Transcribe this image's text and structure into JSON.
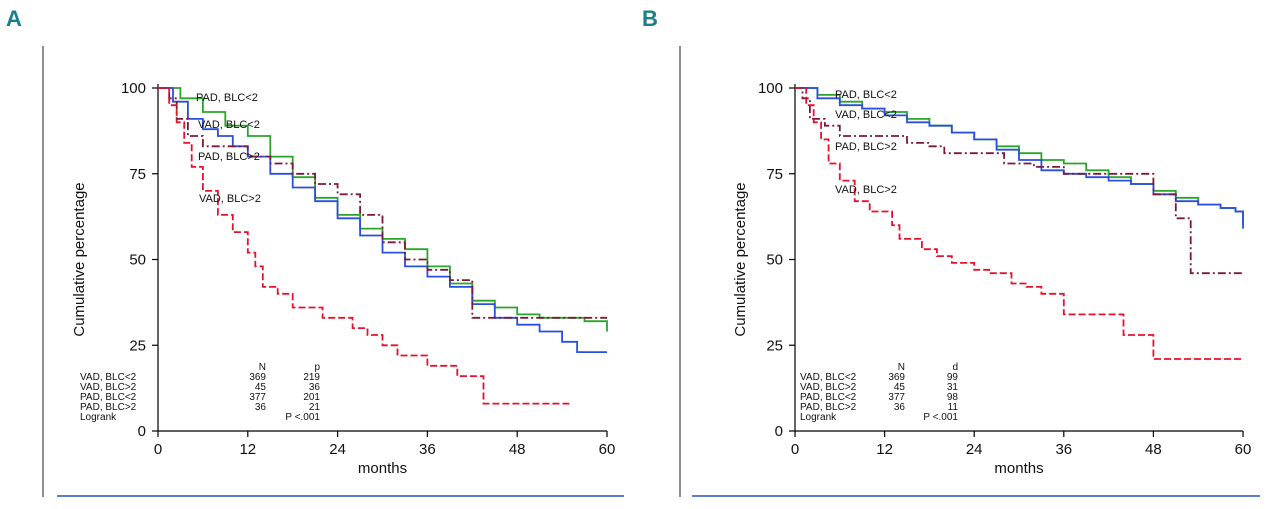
{
  "chart_data": [
    {
      "panel": "A",
      "type": "line",
      "ylabel": "Cumulative percentage",
      "xlabel": "months",
      "xticks": [
        0,
        12,
        24,
        36,
        48,
        60
      ],
      "yticks": [
        0,
        25,
        50,
        75,
        100
      ],
      "xlim": [
        0,
        60
      ],
      "ylim": [
        0,
        100
      ],
      "series": [
        {
          "name": "PAD, BLC<2",
          "color": "#2aa52a",
          "dash": "solid",
          "x": [
            0,
            3,
            6,
            9,
            12,
            15,
            18,
            21,
            24,
            27,
            30,
            33,
            36,
            39,
            42,
            45,
            48,
            51,
            54,
            57,
            59.5,
            60
          ],
          "y": [
            100,
            97,
            93,
            89,
            86,
            80,
            74,
            68,
            63,
            59,
            56,
            53,
            48,
            43,
            38,
            36,
            34,
            33,
            33,
            32,
            32,
            29
          ]
        },
        {
          "name": "VAD, BLC<2",
          "color": "#2a4fe0",
          "dash": "solid",
          "x": [
            0,
            2,
            4,
            6,
            8,
            10,
            12,
            15,
            18,
            21,
            24,
            27,
            30,
            33,
            36,
            39,
            42,
            45,
            48,
            51,
            54,
            56,
            60
          ],
          "y": [
            100,
            96,
            91,
            88,
            86,
            83,
            80,
            75,
            71,
            67,
            62,
            57,
            52,
            48,
            45,
            42,
            37,
            33,
            31,
            29,
            26,
            23,
            23
          ]
        },
        {
          "name": "PAD, BLC>2",
          "color": "#7a1a3a",
          "dash": "dashdot",
          "x": [
            0,
            1.5,
            2.5,
            4,
            6,
            9,
            12,
            15,
            18,
            21,
            24,
            27,
            30,
            33,
            36,
            39,
            42,
            60
          ],
          "y": [
            100,
            97,
            91,
            86,
            83,
            83,
            80,
            78,
            75,
            72,
            69,
            63,
            55,
            50,
            47,
            44,
            33,
            33
          ]
        },
        {
          "name": "VAD, BLC>2",
          "color": "#e8102a",
          "dash": "dashed",
          "x": [
            0,
            1.5,
            2.5,
            3.5,
            4.5,
            6,
            8,
            10,
            12,
            13,
            14,
            16,
            18,
            22,
            26,
            28,
            30,
            32,
            36,
            40,
            43,
            43.5,
            55
          ],
          "y": [
            100,
            95,
            90,
            84,
            77,
            70,
            63,
            58,
            52,
            48,
            42,
            40,
            36,
            33,
            30,
            28,
            25,
            22,
            19,
            16,
            16,
            8,
            8
          ]
        }
      ],
      "annotations": [
        "PAD, BLC<2",
        "VAD, BLC<2",
        "PAD, BLC>2",
        "VAD, BLC>2"
      ],
      "table": {
        "headers": [
          "",
          "N",
          "p"
        ],
        "rows": [
          [
            "VAD, BLC<2",
            "369",
            "219"
          ],
          [
            "VAD, BLC>2",
            "45",
            "36"
          ],
          [
            "PAD, BLC<2",
            "377",
            "201"
          ],
          [
            "PAD, BLC>2",
            "36",
            "21"
          ]
        ],
        "footer": [
          "Logrank",
          "P <.001"
        ]
      }
    },
    {
      "panel": "B",
      "type": "line",
      "ylabel": "Cumulative percentage",
      "xlabel": "months",
      "xticks": [
        0,
        12,
        24,
        36,
        48,
        60
      ],
      "yticks": [
        0,
        25,
        50,
        75,
        100
      ],
      "xlim": [
        0,
        60
      ],
      "ylim": [
        0,
        100
      ],
      "series": [
        {
          "name": "PAD, BLC<2",
          "color": "#2aa52a",
          "dash": "solid",
          "x": [
            0,
            3,
            6,
            9,
            12,
            15,
            18,
            21,
            24,
            27,
            30,
            33,
            36,
            39,
            42,
            45,
            48,
            51,
            54,
            57,
            59,
            60
          ],
          "y": [
            100,
            98,
            96,
            94,
            93,
            91,
            89,
            87,
            85,
            83,
            81,
            79,
            78,
            76,
            74,
            72,
            70,
            68,
            66,
            65,
            64,
            60
          ]
        },
        {
          "name": "VAD, BLC<2",
          "color": "#2a4fe0",
          "dash": "solid",
          "x": [
            0,
            3,
            6,
            9,
            12,
            15,
            18,
            21,
            24,
            27,
            30,
            33,
            36,
            39,
            42,
            45,
            48,
            51,
            54,
            57,
            59,
            60
          ],
          "y": [
            100,
            97,
            95,
            94,
            92,
            90,
            89,
            87,
            85,
            82,
            79,
            76,
            75,
            74,
            73,
            72,
            69,
            67,
            66,
            65,
            64,
            59
          ]
        },
        {
          "name": "PAD, BLC>2",
          "color": "#7a1a3a",
          "dash": "dashdot",
          "x": [
            0,
            1,
            2,
            4,
            6,
            12,
            15,
            18,
            20,
            24,
            28,
            32,
            36,
            42,
            47,
            48,
            51,
            53,
            60
          ],
          "y": [
            100,
            97,
            91,
            89,
            86,
            86,
            84,
            83,
            81,
            81,
            78,
            77,
            75,
            75,
            75,
            69,
            62,
            46,
            46
          ]
        },
        {
          "name": "VAD, BLC>2",
          "color": "#e8102a",
          "dash": "dashed",
          "x": [
            0,
            1.5,
            2.5,
            3.5,
            4.5,
            6,
            8,
            10,
            13,
            14,
            17,
            19,
            21,
            24,
            26,
            29,
            31,
            33,
            36,
            40,
            44,
            48,
            51,
            56,
            60
          ],
          "y": [
            100,
            95,
            90,
            85,
            78,
            73,
            67,
            64,
            60,
            56,
            53,
            51,
            49,
            47,
            46,
            43,
            42,
            40,
            34,
            34,
            28,
            21,
            21,
            21,
            21
          ]
        }
      ],
      "annotations": [
        "PAD, BLC<2",
        "VAD, BLC<2",
        "PAD, BLC>2",
        "VAD, BLC>2"
      ],
      "table": {
        "headers": [
          "",
          "N",
          "d"
        ],
        "rows": [
          [
            "VAD, BLC<2",
            "369",
            "99"
          ],
          [
            "VAD, BLC>2",
            "45",
            "31"
          ],
          [
            "PAD, BLC<2",
            "377",
            "98"
          ],
          [
            "PAD, BLC>2",
            "36",
            "11"
          ]
        ],
        "footer": [
          "Logrank",
          "P <.001"
        ]
      }
    }
  ],
  "style": {
    "panel_letter_color": "#1a7f8a",
    "divider_color": "#5b7fc4",
    "axis_color": "#000000"
  }
}
